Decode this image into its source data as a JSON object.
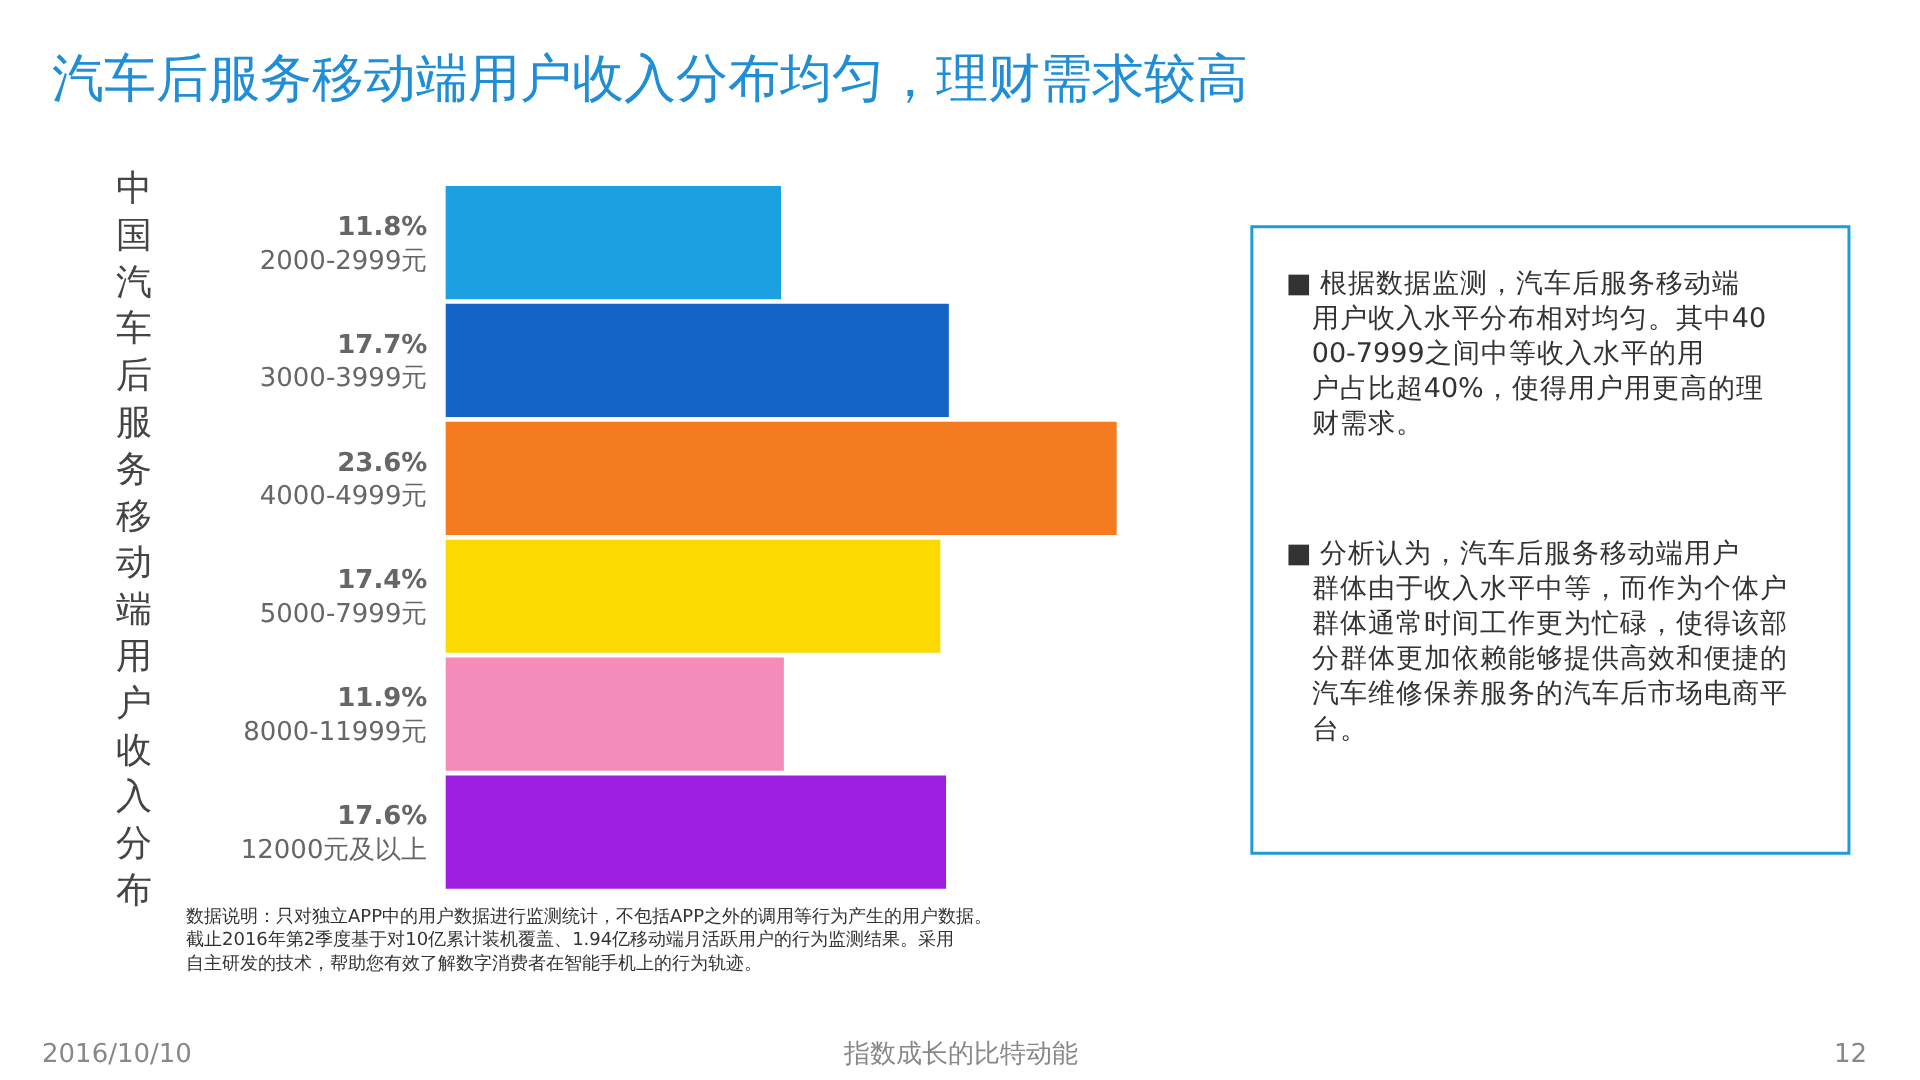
{
  "chart_data": {
    "type": "bar",
    "orientation": "horizontal",
    "title": "汽车后服务移动端用户收入分布均匀，理财需求较高",
    "ylabel": "中国汽车后服务移动端用户收入分布",
    "categories": [
      "2000-2999元",
      "3000-3999元",
      "4000-4999元",
      "5000-7999元",
      "8000-11999元",
      "12000元及以上"
    ],
    "values": [
      11.8,
      17.7,
      23.6,
      17.4,
      11.9,
      17.6
    ],
    "value_labels": [
      "11.8%",
      "17.7%",
      "23.6%",
      "17.4%",
      "11.9%",
      "17.6%"
    ],
    "colors": [
      "#1ba1e2",
      "#1464c8",
      "#f47b20",
      "#fada00",
      "#f48cba",
      "#9f1fe0"
    ],
    "annotations": [
      "■ 根据数据监测，汽车后服务移动端用户收入水平分布相对均匀。其中4000-7999之间中等收入水平的用户占比超40%，使得用户用更高的理财需求。",
      "■ 分析认为，汽车后服务移动端用户群体由于收入水平中等，而作为个体户群体通常时间工作更为忙碌，使得该部分群体更加依赖能够提供高效和便捷的汽车维修保养服务的汽车后市场电商平台。",
      "数据说明：只对独立APP中的用户数据进行监测统计，不包括APP之外的调用等行为产生的用户数据。截止2016年第2季度基于对10亿累计装机覆盖、1.94亿移动端月活跃用户的行为监测结果。采用自主研发的技术，帮助您有效了解数字消费者在智能手机上的行为轨迹。",
      "2016/10/10",
      "指数成长的比特动能",
      "12"
    ]
  }
}
